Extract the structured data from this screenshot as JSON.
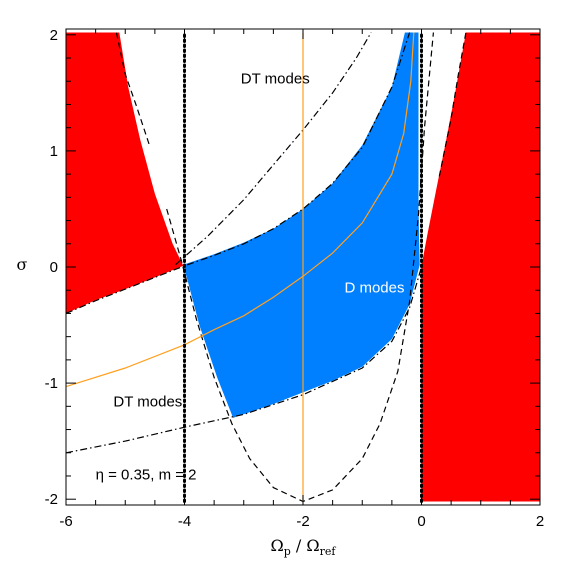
{
  "chart_data": {
    "type": "area",
    "title": "",
    "xlabel": "Ω_p / Ω_ref",
    "xlabel_main": "Ω",
    "xlabel_sub_num": "p",
    "xlabel_sep": " / Ω",
    "xlabel_sub_den": "ref",
    "ylabel": "σ",
    "xlim": [
      -6,
      2
    ],
    "ylim": [
      -2.05,
      2.05
    ],
    "x_ticks": [
      -6,
      -4,
      -2,
      0,
      2
    ],
    "x_tick_labels": [
      "-6",
      "-4",
      "-2",
      "0",
      "2"
    ],
    "y_ticks": [
      -2,
      -1,
      0,
      1,
      2
    ],
    "y_tick_labels": [
      "-2",
      "-1",
      "0",
      "1",
      "2"
    ],
    "parameters": {
      "eta": 0.35,
      "m": 2
    },
    "annotations": [
      {
        "text": "DT modes",
        "x": -3.05,
        "y": 1.58,
        "color": "#000000"
      },
      {
        "text": "D modes",
        "x": -1.3,
        "y": -0.22,
        "color": "#ffffff"
      },
      {
        "text": "DT modes",
        "x": -5.2,
        "y": -1.2,
        "color": "#000000"
      },
      {
        "text": "η = 0.35, m = 2",
        "x": -5.5,
        "y": -1.83,
        "color": "#000000"
      }
    ],
    "regions": [
      {
        "name": "red-left",
        "color": "#ff0000",
        "points": [
          [
            -6,
            -0.4
          ],
          [
            -5.5,
            -0.285
          ],
          [
            -5,
            -0.19
          ],
          [
            -4.5,
            -0.09
          ],
          [
            -4.02,
            0.01
          ],
          [
            -4.2,
            0.2
          ],
          [
            -4.5,
            0.63
          ],
          [
            -4.75,
            1.1
          ],
          [
            -4.95,
            1.55
          ],
          [
            -5.1,
            2.02
          ],
          [
            -6,
            2.02
          ]
        ]
      },
      {
        "name": "red-right",
        "color": "#ff0000",
        "points": [
          [
            0,
            -2.02
          ],
          [
            0,
            0.01
          ],
          [
            0.1,
            0.28
          ],
          [
            0.25,
            0.67
          ],
          [
            0.4,
            1.05
          ],
          [
            0.55,
            1.45
          ],
          [
            0.75,
            2.02
          ],
          [
            2,
            2.02
          ],
          [
            2,
            -2.02
          ]
        ]
      },
      {
        "name": "d-modes",
        "color": "#0080ff",
        "points": [
          [
            -4.02,
            0.02
          ],
          [
            -3.5,
            0.11
          ],
          [
            -3,
            0.21
          ],
          [
            -2.5,
            0.33
          ],
          [
            -2,
            0.5
          ],
          [
            -1.5,
            0.72
          ],
          [
            -1,
            1.05
          ],
          [
            -0.5,
            1.55
          ],
          [
            -0.28,
            2.02
          ],
          [
            -0.05,
            2.02
          ],
          [
            -0.05,
            0.5
          ],
          [
            -0.04,
            0.25
          ],
          [
            -0.03,
            0.02
          ],
          [
            -0.2,
            -0.32
          ],
          [
            -0.5,
            -0.62
          ],
          [
            -1,
            -0.86
          ],
          [
            -1.5,
            -0.98
          ],
          [
            -2,
            -1.08
          ],
          [
            -2.5,
            -1.18
          ],
          [
            -3.18,
            -1.3
          ],
          [
            -3.45,
            -0.95
          ],
          [
            -3.75,
            -0.5
          ],
          [
            -3.93,
            -0.15
          ]
        ]
      }
    ],
    "series": [
      {
        "style": "dash-dot",
        "color": "#000000",
        "points": [
          [
            -6,
            -0.4
          ],
          [
            -5.5,
            -0.29
          ],
          [
            -5,
            -0.19
          ],
          [
            -4.5,
            -0.09
          ],
          [
            -4,
            0.01
          ],
          [
            -3.5,
            0.1
          ],
          [
            -3,
            0.2
          ],
          [
            -2.5,
            0.33
          ],
          [
            -2,
            0.5
          ],
          [
            -1.5,
            0.72
          ],
          [
            -1,
            1.03
          ],
          [
            -0.5,
            1.55
          ],
          [
            -0.2,
            2.02
          ]
        ]
      },
      {
        "style": "dash-dot",
        "color": "#000000",
        "points": [
          [
            -6,
            -1.6
          ],
          [
            -5,
            -1.5
          ],
          [
            -4,
            -1.38
          ],
          [
            -3,
            -1.27
          ],
          [
            -2,
            -1.1
          ],
          [
            -1,
            -0.87
          ],
          [
            -0.5,
            -0.64
          ],
          [
            -0.2,
            -0.35
          ],
          [
            0,
            0
          ]
        ]
      },
      {
        "style": "dash-dot",
        "color": "#000000",
        "points": [
          [
            -4.15,
            0.02
          ],
          [
            -3.6,
            0.27
          ],
          [
            -3,
            0.58
          ],
          [
            -2.5,
            0.88
          ],
          [
            -2,
            1.18
          ],
          [
            -1.5,
            1.5
          ],
          [
            -1.1,
            1.8
          ],
          [
            -0.85,
            2.02
          ]
        ]
      },
      {
        "style": "dashed",
        "color": "#000000",
        "points": [
          [
            -4.3,
            0.5
          ],
          [
            -4.05,
            0.05
          ],
          [
            -3.8,
            -0.45
          ],
          [
            -3.5,
            -0.95
          ],
          [
            -3.2,
            -1.35
          ],
          [
            -2.9,
            -1.65
          ],
          [
            -2.5,
            -1.9
          ],
          [
            -2,
            -2.02
          ],
          [
            -1.5,
            -1.92
          ],
          [
            -1,
            -1.65
          ],
          [
            -0.7,
            -1.35
          ],
          [
            -0.4,
            -0.9
          ],
          [
            -0.2,
            -0.3
          ],
          [
            -0.05,
            0.45
          ],
          [
            0.05,
            1.2
          ],
          [
            0.2,
            2.02
          ]
        ]
      },
      {
        "style": "dashed",
        "color": "#000000",
        "points": [
          [
            -4.6,
            1.06
          ],
          [
            -4.82,
            1.4
          ],
          [
            -5,
            1.66
          ],
          [
            -5.15,
            2.02
          ]
        ]
      },
      {
        "style": "dashed",
        "color": "#000000",
        "points": [
          [
            0.3,
            0.78
          ],
          [
            0.5,
            1.28
          ],
          [
            0.62,
            1.65
          ],
          [
            0.75,
            2.02
          ]
        ]
      },
      {
        "style": "solid",
        "color": "#ffa020",
        "points": [
          [
            -6,
            -1.03
          ],
          [
            -5,
            -0.87
          ],
          [
            -4,
            -0.67
          ],
          [
            -3.5,
            -0.54
          ],
          [
            -3,
            -0.42
          ],
          [
            -2.5,
            -0.26
          ],
          [
            -2,
            -0.08
          ],
          [
            -1.5,
            0.12
          ],
          [
            -1,
            0.38
          ],
          [
            -0.5,
            0.8
          ],
          [
            -0.3,
            1.15
          ],
          [
            -0.18,
            1.6
          ],
          [
            -0.13,
            2.02
          ]
        ]
      },
      {
        "style": "solid",
        "color": "#ffa020",
        "points": [
          [
            -2,
            -2.02
          ],
          [
            -2,
            2.02
          ]
        ]
      },
      {
        "style": "dotted",
        "color": "#000000",
        "points": [
          [
            -4,
            -2.02
          ],
          [
            -4,
            2.02
          ]
        ]
      },
      {
        "style": "dotted",
        "color": "#000000",
        "points": [
          [
            0,
            -2.02
          ],
          [
            0,
            2.02
          ]
        ]
      }
    ],
    "grid": false,
    "legend": "none"
  }
}
